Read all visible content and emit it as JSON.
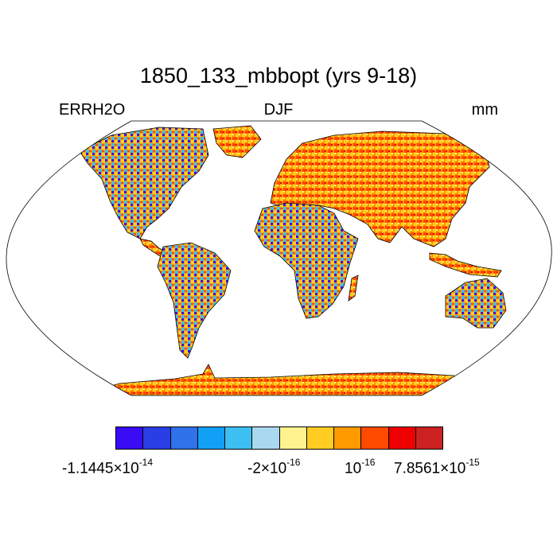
{
  "title": "1850_133_mbbopt (yrs 9-18)",
  "subtitle_left": "ERRH2O",
  "subtitle_center": "DJF",
  "subtitle_right": "mm",
  "colorbar": {
    "colors": [
      "#3a0cf5",
      "#2a3ee6",
      "#2f72e9",
      "#12a0f6",
      "#3dbff2",
      "#a9d8ef",
      "#fff38f",
      "#ffcc22",
      "#ff9a00",
      "#ff4b00",
      "#ee0000",
      "#cc2222"
    ],
    "labels": [
      {
        "mantissa": "-1.1445",
        "times": "×10",
        "exp": "-14"
      },
      {
        "mantissa": "-2",
        "times": "×10",
        "exp": "-16"
      },
      {
        "mantissa": "",
        "times": "10",
        "exp": "-16"
      },
      {
        "mantissa": "7.8561",
        "times": "×10",
        "exp": "-15"
      }
    ]
  },
  "map": {
    "projection": "Robinson",
    "field": "noisy gridded values over land, mostly orange/yellow with blue patches",
    "land_color_dominant": "#ff9a00",
    "ocean_color": "#ffffff"
  }
}
